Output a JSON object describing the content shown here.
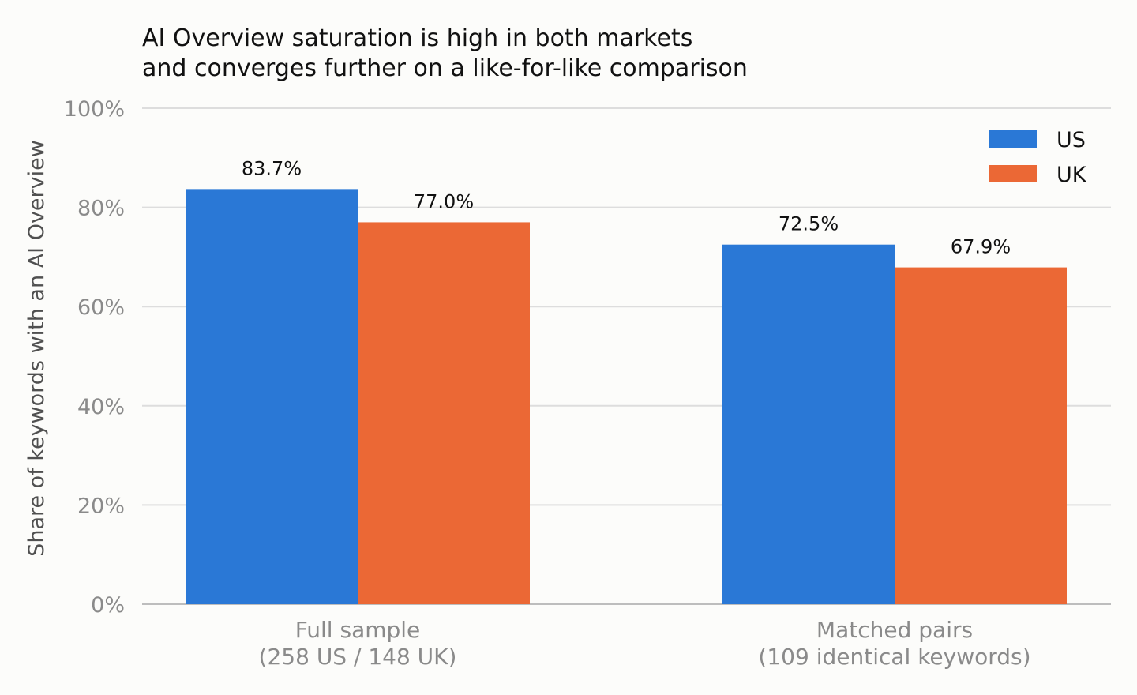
{
  "chart_data": {
    "type": "bar",
    "title": "AI Overview saturation is high in both markets\nand converges further on a like-for-like comparison",
    "xlabel": "",
    "ylabel": "Share of keywords with an AI Overview",
    "categories": [
      "Full sample\n(258 US / 148 UK)",
      "Matched pairs\n(109 identical keywords)"
    ],
    "series": [
      {
        "name": "US",
        "values": [
          83.7,
          72.5
        ],
        "color": "#2a78d6"
      },
      {
        "name": "UK",
        "values": [
          77.0,
          67.9
        ],
        "color": "#eb6835"
      }
    ],
    "value_labels": [
      [
        "83.7%",
        "72.5%"
      ],
      [
        "77.0%",
        "67.9%"
      ]
    ],
    "ylim": [
      0,
      100
    ],
    "yticks": [
      0,
      20,
      40,
      60,
      80,
      100
    ],
    "ytick_labels": [
      "0%",
      "20%",
      "40%",
      "60%",
      "80%",
      "100%"
    ],
    "grid": true,
    "legend_position": "top-right"
  }
}
